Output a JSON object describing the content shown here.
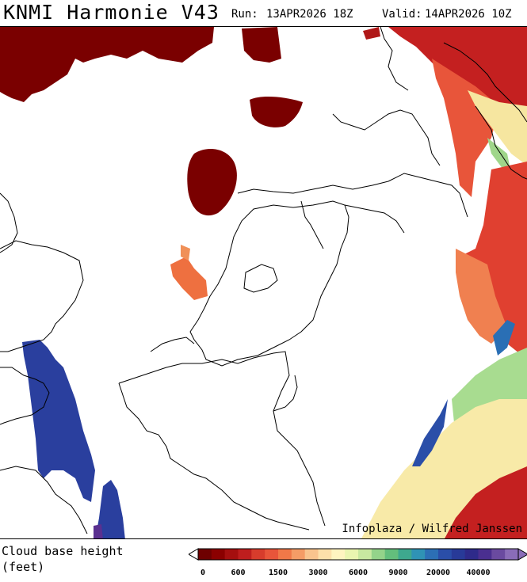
{
  "header": {
    "title": "KNMI Harmonie V43",
    "run_label": "Run:",
    "run_value": "13APR2026 18Z",
    "valid_label": "Valid:",
    "valid_value": "14APR2026 10Z"
  },
  "map": {
    "credit": "Infoplaza / Wilfred Janssen"
  },
  "footer": {
    "variable_line1": "Cloud base height",
    "variable_line2": "(feet)"
  },
  "legend": {
    "tick_labels": [
      "0",
      "600",
      "1500",
      "3000",
      "6000",
      "9000",
      "20000",
      "40000"
    ],
    "colors": [
      "#6e0000",
      "#8b0000",
      "#a50f0f",
      "#be1e1e",
      "#d73c2c",
      "#e8553a",
      "#f07848",
      "#f59c66",
      "#f9c48e",
      "#fde0aa",
      "#fff4c0",
      "#eaf5b0",
      "#c8e8a0",
      "#94d38a",
      "#63be7c",
      "#3ea88e",
      "#2f93b5",
      "#2c6fb5",
      "#2a4ea8",
      "#283a98",
      "#2e2a8a",
      "#4a2f90",
      "#6a4aa0",
      "#8a6cb8"
    ]
  },
  "colors": {
    "dark_red": "#7a0000",
    "orange": "#e8553a",
    "blue": "#2a3f9e"
  }
}
